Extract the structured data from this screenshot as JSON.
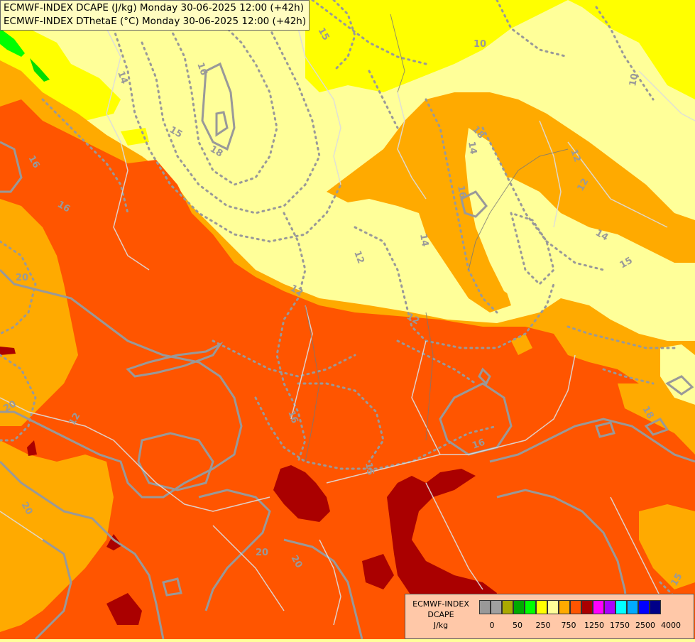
{
  "header": {
    "line1": "ECMWF-INDEX DCAPE (J/kg) Monday 30-06-2025 12:00 (+42h)",
    "line2": "ECMWF-INDEX DThetaE (°C) Monday 30-06-2025 12:00 (+42h)"
  },
  "legend": {
    "title_line1": "ECMWF-INDEX",
    "title_line2": "DCAPE",
    "title_line3": "J/kg",
    "colors": [
      "#999999",
      "#a0a0a0",
      "#aaaa00",
      "#00aa00",
      "#00ff00",
      "#ffff00",
      "#ffff99",
      "#ffaa00",
      "#ff5500",
      "#aa0000",
      "#ff00ff",
      "#aa00ff",
      "#00ffff",
      "#00aaff",
      "#0000ff",
      "#000088"
    ],
    "ticks": [
      "0",
      "50",
      "250",
      "750",
      "1250",
      "1750",
      "2500",
      "4000"
    ]
  },
  "contour_labels": [
    "15",
    "10",
    "10",
    "12",
    "14",
    "16",
    "18",
    "15",
    "14",
    "16",
    "18",
    "12",
    "14",
    "12",
    "12",
    "14",
    "15",
    "12",
    "16",
    "20",
    "16",
    "12",
    "20",
    "20",
    "16",
    "16",
    "20",
    "20",
    "18",
    "15",
    "15"
  ],
  "colors": {
    "dcape_low": "#ffff99",
    "dcape_yellow": "#ffff00",
    "dcape_orange": "#ffaa00",
    "dcape_deep_orange": "#ff5500",
    "dcape_dark_red": "#aa0000",
    "dcape_green": "#00ff00",
    "contour_gray": "#999999",
    "border_gray": "#cccccc"
  }
}
